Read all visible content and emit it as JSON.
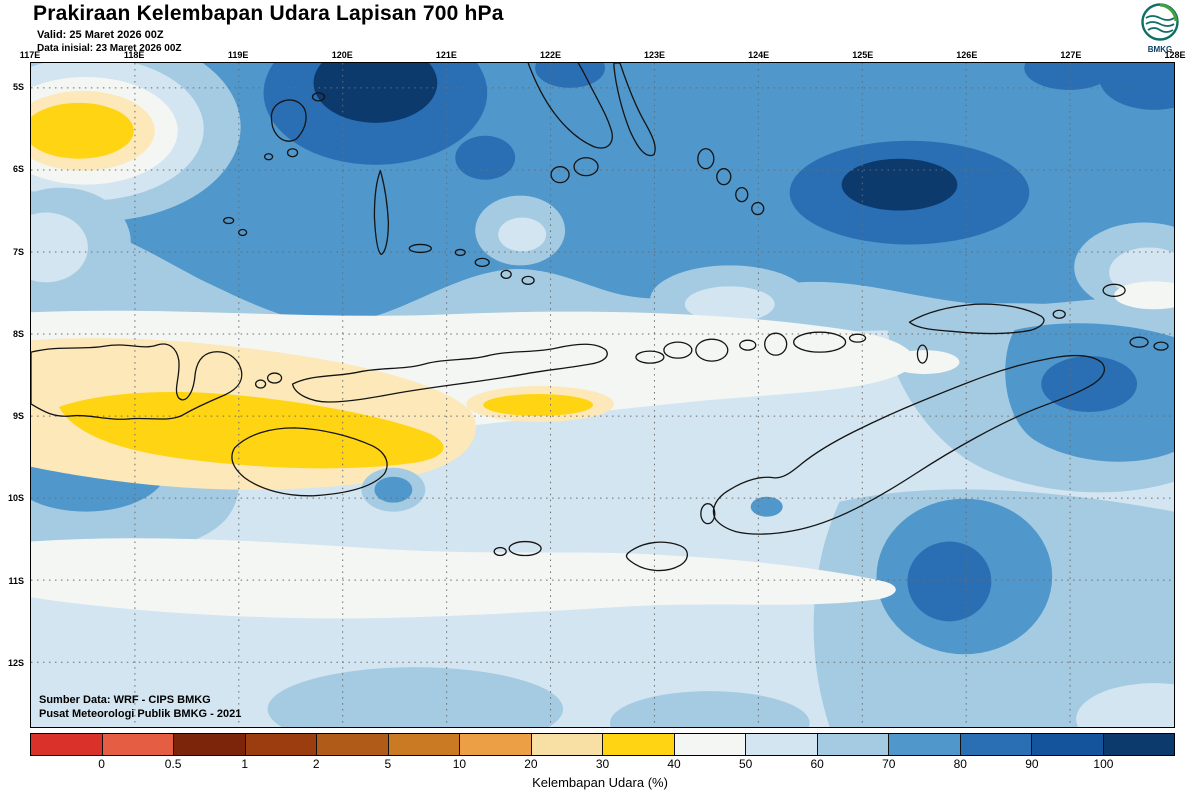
{
  "header": {
    "title": "Prakiraan Kelembapan Udara Lapisan 700 hPa",
    "valid": "Valid: 25 Maret 2026 00Z",
    "init": "Data inisial: 23 Maret 2026 00Z",
    "logo_text": "BMKG"
  },
  "geo": {
    "lon_labels": [
      "117E",
      "118E",
      "119E",
      "120E",
      "121E",
      "122E",
      "123E",
      "124E",
      "125E",
      "126E",
      "127E",
      "128E"
    ],
    "lat_labels": [
      "5S",
      "6S",
      "7S",
      "8S",
      "9S",
      "10S",
      "11S",
      "12S"
    ],
    "source_line1": "Sumber Data: WRF - CIPS BMKG",
    "source_line2": "Pusat Meteorologi Publik BMKG - 2021"
  },
  "colorbar": {
    "caption": "Kelembapan Udara (%)",
    "tick_labels": [
      "0",
      "0.5",
      "1",
      "2",
      "5",
      "10",
      "20",
      "30",
      "40",
      "50",
      "60",
      "70",
      "80",
      "90",
      "100"
    ],
    "segment_colors": [
      "#da322a",
      "#e55d43",
      "#7c250b",
      "#9b3d0f",
      "#b05b18",
      "#ca7a23",
      "#ec9f45",
      "#f8dfa3",
      "#ffd412",
      "#f4f6f3",
      "#d3e5f0",
      "#a5cbe2",
      "#5097cb",
      "#2a6fb4",
      "#14549c",
      "#0d3a6d"
    ]
  },
  "palette": {
    "c30": "#fce8b8",
    "c40": "#ffd412",
    "c50": "#f4f6f3",
    "c60": "#d3e5f0",
    "c70": "#a5cbe2",
    "c80": "#5097cb",
    "c90": "#2a6fb4",
    "c100": "#0d3a6d"
  }
}
